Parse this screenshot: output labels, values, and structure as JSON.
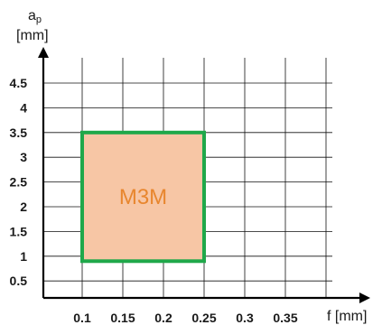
{
  "chart_data": {
    "type": "area",
    "title": "",
    "x": [
      0.1,
      0.15,
      0.2,
      0.25,
      0.3,
      0.35
    ],
    "x_ticks": [
      "0.1",
      "0.15",
      "0.2",
      "0.25",
      "0.3",
      "0.35"
    ],
    "y_ticks": [
      "0.5",
      "1",
      "1.5",
      "2",
      "2.5",
      "3",
      "3.5",
      "4",
      "4.5"
    ],
    "xlabel": "f [mm]",
    "ylabel": {
      "main": "a",
      "sub": "p",
      "unit": "[mm]"
    },
    "xlim": [
      0.05,
      0.4
    ],
    "ylim": [
      0.25,
      4.75
    ],
    "grid": true,
    "regions": [
      {
        "name": "M3M",
        "x_range": [
          0.1,
          0.25
        ],
        "y_range": [
          0.9,
          3.5
        ],
        "fill_color": "#f7c6a5",
        "border_color": "#1fa84a",
        "label_color": "#e8862e"
      }
    ]
  }
}
